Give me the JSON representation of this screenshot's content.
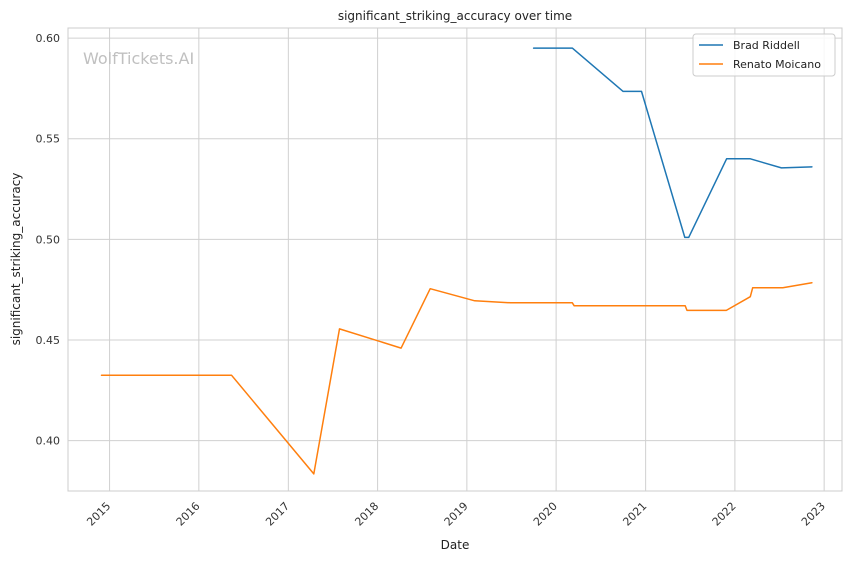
{
  "chart_data": {
    "type": "line",
    "title": "significant_striking_accuracy over time",
    "xlabel": "Date",
    "ylabel": "significant_striking_accuracy",
    "watermark": "WolfTickets.AI",
    "xlim": [
      "2014-07-15",
      "2023-03-15"
    ],
    "ylim": [
      0.375,
      0.605
    ],
    "x_ticks": [
      "2015",
      "2016",
      "2017",
      "2018",
      "2019",
      "2020",
      "2021",
      "2022",
      "2023"
    ],
    "y_ticks": [
      "0.40",
      "0.45",
      "0.50",
      "0.55",
      "0.60"
    ],
    "grid": true,
    "legend_position": "top-right",
    "series": [
      {
        "name": "Brad Riddell",
        "color": "#1f77b4",
        "points": [
          [
            "2019-10-01",
            0.595
          ],
          [
            "2020-03-07",
            0.595
          ],
          [
            "2020-10-01",
            0.5735
          ],
          [
            "2020-12-15",
            0.5735
          ],
          [
            "2021-06-10",
            0.501
          ],
          [
            "2021-06-26",
            0.501
          ],
          [
            "2021-11-28",
            0.54
          ],
          [
            "2022-03-05",
            0.54
          ],
          [
            "2022-07-10",
            0.5355
          ],
          [
            "2022-11-12",
            0.536
          ]
        ]
      },
      {
        "name": "Renato Moicano",
        "color": "#ff7f0e",
        "points": [
          [
            "2014-11-29",
            0.4325
          ],
          [
            "2016-05-14",
            0.4325
          ],
          [
            "2017-04-15",
            0.3835
          ],
          [
            "2017-07-29",
            0.4555
          ],
          [
            "2018-04-07",
            0.446
          ],
          [
            "2018-08-04",
            0.4755
          ],
          [
            "2019-02-02",
            0.4695
          ],
          [
            "2019-06-29",
            0.4685
          ],
          [
            "2020-03-07",
            0.4685
          ],
          [
            "2020-03-15",
            0.467
          ],
          [
            "2021-06-12",
            0.467
          ],
          [
            "2021-06-19",
            0.4647
          ],
          [
            "2021-11-27",
            0.4647
          ],
          [
            "2022-03-05",
            0.4715
          ],
          [
            "2022-03-15",
            0.476
          ],
          [
            "2022-07-16",
            0.476
          ],
          [
            "2022-11-12",
            0.4785
          ]
        ]
      }
    ]
  }
}
